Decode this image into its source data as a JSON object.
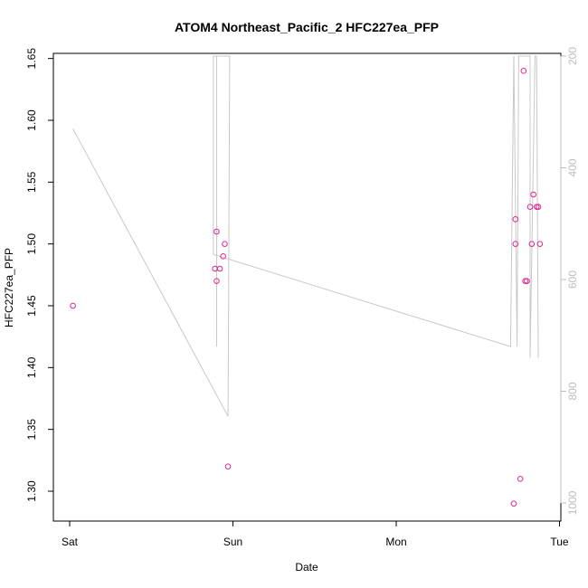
{
  "chart_data": {
    "type": "scatter",
    "title": "ATOM4 Northeast_Pacific_2 HFC227ea_PFP",
    "xlabel": "Date",
    "ylabel": "HFC227ea_PFP",
    "x_ticks": [
      "Sat",
      "Sun",
      "Mon",
      "Tue"
    ],
    "xlim_days": [
      -0.1,
      3.0
    ],
    "ylim": [
      1.275,
      1.655
    ],
    "y_ticks": [
      1.3,
      1.35,
      1.4,
      1.45,
      1.5,
      1.55,
      1.6,
      1.65
    ],
    "y2lim": [
      1010,
      200
    ],
    "y2_ticks": [
      200,
      400,
      600,
      800,
      1000
    ],
    "colors": {
      "points": "#e0288c",
      "line": "#c8c8c8",
      "right_axis": "#bdbdbd"
    },
    "series": [
      {
        "kind": "points",
        "x_days": [
          0.02,
          0.89,
          0.9,
          0.9,
          0.92,
          0.94,
          0.95,
          0.97,
          2.72,
          2.73,
          2.73,
          2.76,
          2.78,
          2.79,
          2.8,
          2.82,
          2.83,
          2.84,
          2.86,
          2.87,
          2.88
        ],
        "y": [
          1.45,
          1.48,
          1.47,
          1.51,
          1.48,
          1.49,
          1.5,
          1.32,
          1.29,
          1.52,
          1.5,
          1.31,
          1.64,
          1.47,
          1.47,
          1.53,
          1.5,
          1.54,
          1.53,
          1.53,
          1.5
        ]
      },
      {
        "kind": "line",
        "axis": "right",
        "x_days": [
          0.02,
          0.97,
          0.98,
          0.96,
          0.9,
          0.9,
          0.9,
          0.88,
          0.88,
          2.7,
          2.72,
          2.72,
          2.74,
          2.75,
          2.76,
          2.79,
          2.8,
          2.82,
          2.82,
          2.85,
          2.86,
          2.87
        ],
        "y": [
          330,
          845,
          200,
          200,
          200,
          720,
          200,
          200,
          555,
          720,
          200,
          200,
          720,
          200,
          200,
          200,
          200,
          200,
          740,
          200,
          200,
          740
        ]
      }
    ]
  }
}
